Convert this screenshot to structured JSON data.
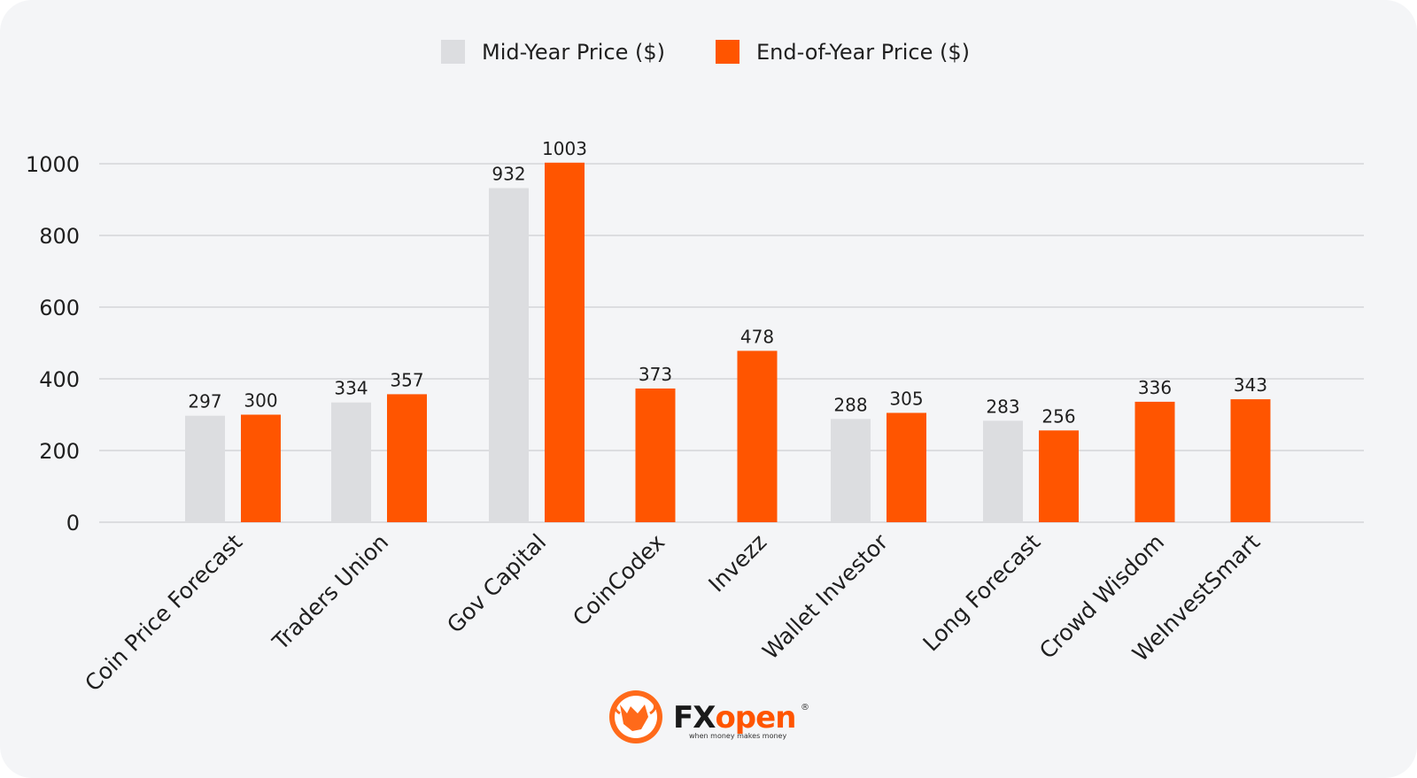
{
  "colors": {
    "mid": "#dcdde0",
    "end": "#ff5500",
    "grid": "#dcdde0",
    "text": "#1f1f1f",
    "brand_dark": "#1a1a1a"
  },
  "logo": {
    "icon": "bull-logo-icon",
    "brand_prefix": "FX",
    "brand_suffix": "open",
    "registered": "®",
    "tagline": "when money makes money"
  },
  "chart_data": {
    "type": "bar",
    "categories": [
      "Coin Price Forecast",
      "Traders Union",
      "Gov Capital",
      "CoinCodex",
      "Invezz",
      "Wallet Investor",
      "Long Forecast",
      "Crowd Wisdom",
      "WeInvestSmart"
    ],
    "series": [
      {
        "name": "Mid-Year Price ($)",
        "values": [
          297,
          334,
          932,
          null,
          null,
          288,
          283,
          null,
          null
        ]
      },
      {
        "name": "End-of-Year Price ($)",
        "values": [
          300,
          357,
          1003,
          373,
          478,
          305,
          256,
          336,
          343
        ]
      }
    ],
    "yticks": [
      0,
      200,
      400,
      600,
      800,
      1000
    ],
    "ylim": [
      0,
      1000
    ],
    "grid": true,
    "legend_position": "top-center"
  }
}
